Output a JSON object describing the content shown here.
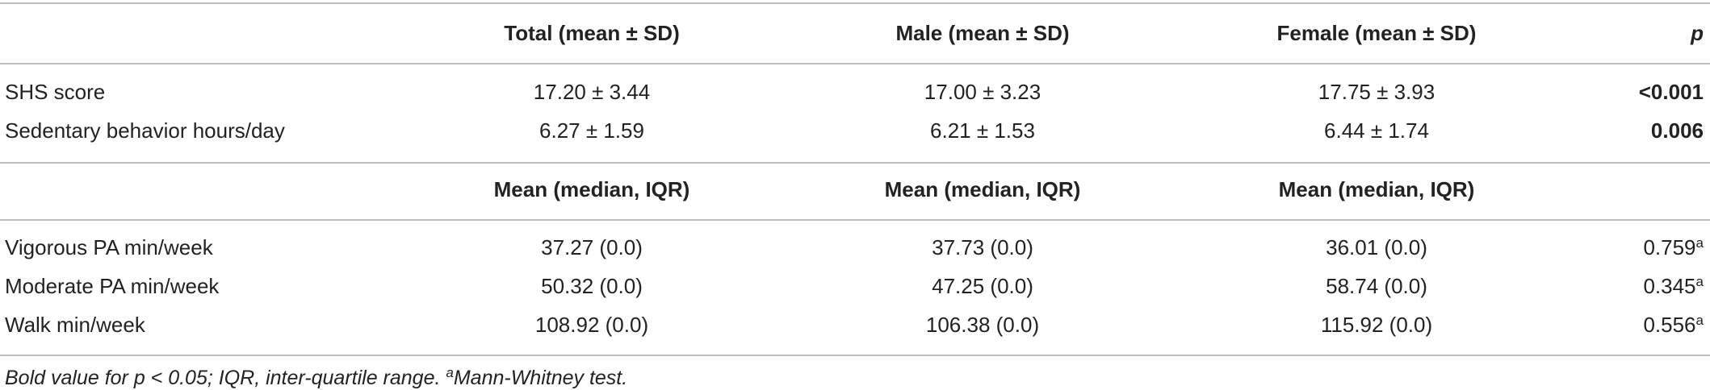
{
  "table": {
    "header": [
      "Total (mean ± SD)",
      "Male (mean ± SD)",
      "Female (mean ± SD)",
      "p"
    ],
    "rows": [
      [
        "SHS score",
        "17.20 ± 3.44",
        "17.00 ± 3.23",
        "17.75 ± 3.93",
        "<0.001"
      ],
      [
        "Sedentary behavior hours/day",
        "6.27 ± 1.59",
        "6.21 ± 1.53",
        "6.44 ± 1.74",
        "0.006"
      ]
    ],
    "header2": [
      "Mean (median, IQR)",
      "Mean (median, IQR)",
      "Mean (median, IQR)"
    ],
    "rows2": [
      [
        "Vigorous PA min/week",
        "37.27 (0.0)",
        "37.73 (0.0)",
        "36.01 (0.0)",
        {
          "value": "0.759",
          "sup": "a"
        }
      ],
      [
        "Moderate PA min/week",
        "50.32 (0.0)",
        "47.25 (0.0)",
        "58.74 (0.0)",
        {
          "value": "0.345",
          "sup": "a"
        }
      ],
      [
        "Walk min/week",
        "108.92 (0.0)",
        "106.38 (0.0)",
        "115.92 (0.0)",
        {
          "value": "0.556",
          "sup": "a"
        }
      ]
    ]
  },
  "footnote": {
    "text": "Bold value for p < 0.05; IQR, inter-quartile range. ",
    "sup": "a",
    "text2": "Mann-Whitney test."
  }
}
